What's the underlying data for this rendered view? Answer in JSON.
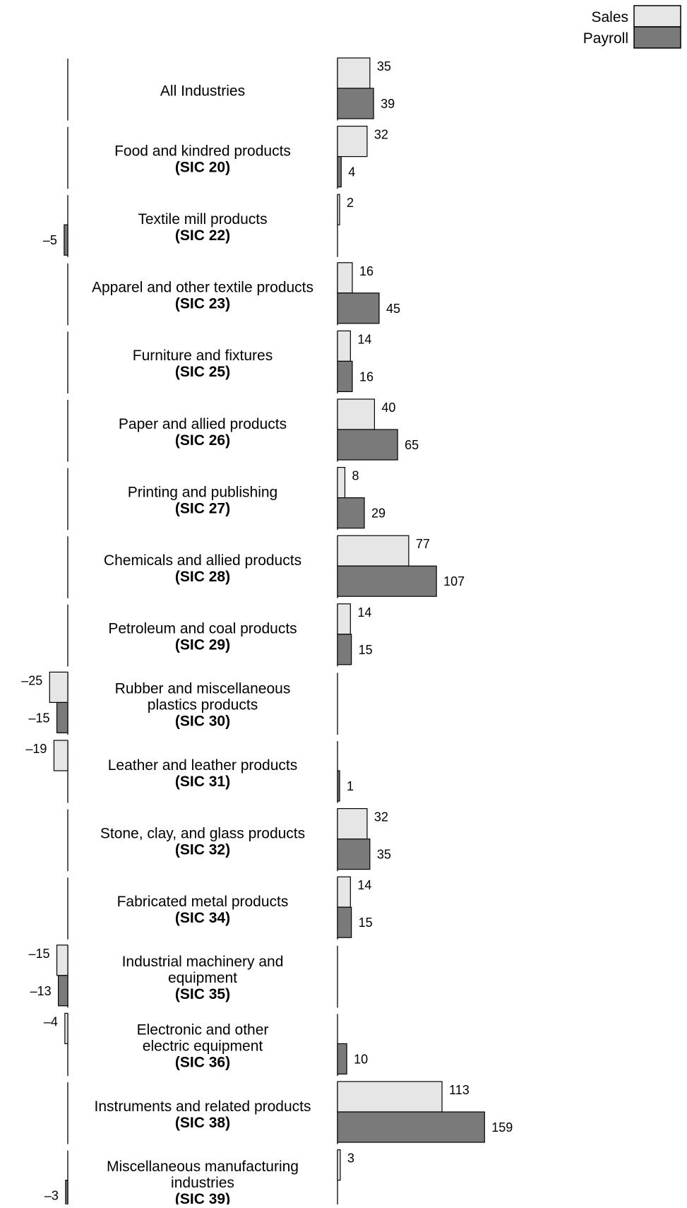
{
  "legend": {
    "placement": "top-right",
    "items": [
      {
        "label": "Sales",
        "color": "#e6e6e6"
      },
      {
        "label": "Payroll",
        "color": "#7a7a7a"
      }
    ]
  },
  "chart_data": {
    "type": "bar",
    "orientation": "horizontal",
    "title": "",
    "xlabel": "",
    "ylabel": "",
    "grid": false,
    "legend_placement": "top-right",
    "categories": [
      {
        "lines": [
          "All Industries"
        ]
      },
      {
        "lines": [
          "Food and kindred products",
          "(SIC  20)"
        ]
      },
      {
        "lines": [
          "Textile mill products",
          "(SIC 22)"
        ]
      },
      {
        "lines": [
          "Apparel and other textile products",
          "(SIC 23)"
        ]
      },
      {
        "lines": [
          "Furniture and fixtures",
          "(SIC 25)"
        ]
      },
      {
        "lines": [
          "Paper and allied products",
          "(SIC 26)"
        ]
      },
      {
        "lines": [
          "Printing and publishing",
          "(SIC 27)"
        ]
      },
      {
        "lines": [
          "Chemicals and allied products",
          "(SIC 28)"
        ]
      },
      {
        "lines": [
          "Petroleum and coal products",
          "(SIC 29)"
        ]
      },
      {
        "lines": [
          "Rubber and miscellaneous",
          "plastics products",
          "(SIC 30)"
        ]
      },
      {
        "lines": [
          "Leather and leather products",
          "(SIC 31)"
        ]
      },
      {
        "lines": [
          "Stone, clay, and glass products",
          "(SIC 32)"
        ]
      },
      {
        "lines": [
          "Fabricated metal products",
          "(SIC 34)"
        ]
      },
      {
        "lines": [
          "Industrial machinery and",
          "equipment",
          "(SIC 35)"
        ]
      },
      {
        "lines": [
          "Electronic and other",
          "electric equipment",
          "(SIC 36)"
        ]
      },
      {
        "lines": [
          "Instruments and related products",
          "(SIC 38)"
        ]
      },
      {
        "lines": [
          "Miscellaneous manufacturing",
          "industries",
          "(SIC 39)"
        ]
      }
    ],
    "series": [
      {
        "name": "Sales",
        "color": "#e6e6e6",
        "values": [
          35,
          32,
          2,
          16,
          14,
          40,
          8,
          77,
          14,
          -25,
          -19,
          32,
          14,
          -15,
          -4,
          113,
          3
        ],
        "labels": [
          "35",
          "32",
          "2",
          "16",
          "14",
          "40",
          "8",
          "77",
          "14",
          "–25",
          "–19",
          "32",
          "14",
          "–15",
          "–4",
          "113",
          "3"
        ]
      },
      {
        "name": "Payroll",
        "color": "#7a7a7a",
        "values": [
          39,
          4,
          -5,
          45,
          16,
          65,
          29,
          107,
          15,
          -15,
          1,
          35,
          15,
          -13,
          10,
          159,
          -3
        ],
        "labels": [
          "39",
          "4",
          "–5",
          "45",
          "16",
          "65",
          "29",
          "107",
          "15",
          "–15",
          "1",
          "35",
          "15",
          "–13",
          "10",
          "159",
          "–3"
        ]
      }
    ]
  }
}
